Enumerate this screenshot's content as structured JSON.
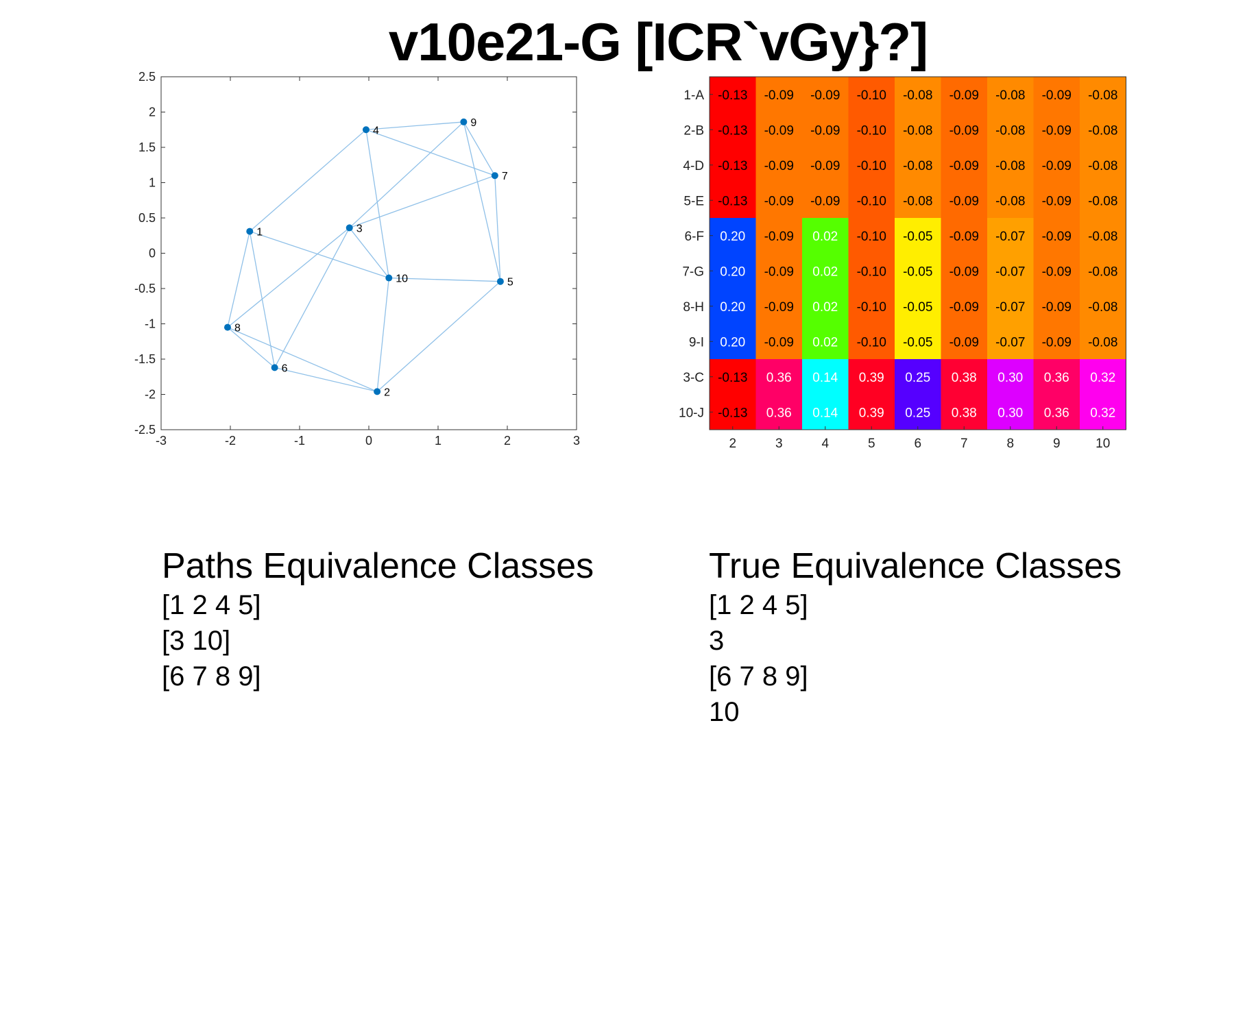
{
  "title": "v10e21-G [ICR`vGy}?]",
  "graph": {
    "xlim": [
      -3,
      3
    ],
    "ylim": [
      -2.5,
      2.5
    ],
    "xticks": [
      "-3",
      "-2",
      "-1",
      "0",
      "1",
      "2",
      "3"
    ],
    "yticks": [
      "2.5",
      "2",
      "1.5",
      "1",
      "0.5",
      "0",
      "-0.5",
      "-1",
      "-1.5",
      "-2",
      "-2.5"
    ],
    "node_color": "#0072BD",
    "edge_color": "#8FC0E8",
    "nodes": [
      {
        "id": "1",
        "x": -1.72,
        "y": 0.31
      },
      {
        "id": "2",
        "x": 0.12,
        "y": -1.96
      },
      {
        "id": "3",
        "x": -0.28,
        "y": 0.36
      },
      {
        "id": "4",
        "x": -0.04,
        "y": 1.75
      },
      {
        "id": "5",
        "x": 1.9,
        "y": -0.4
      },
      {
        "id": "6",
        "x": -1.36,
        "y": -1.62
      },
      {
        "id": "7",
        "x": 1.82,
        "y": 1.1
      },
      {
        "id": "8",
        "x": -2.04,
        "y": -1.05
      },
      {
        "id": "9",
        "x": 1.37,
        "y": 1.86
      },
      {
        "id": "10",
        "x": 0.29,
        "y": -0.35
      }
    ],
    "edges": [
      [
        "1",
        "4"
      ],
      [
        "1",
        "10"
      ],
      [
        "1",
        "8"
      ],
      [
        "1",
        "6"
      ],
      [
        "4",
        "9"
      ],
      [
        "4",
        "7"
      ],
      [
        "4",
        "10"
      ],
      [
        "9",
        "7"
      ],
      [
        "9",
        "5"
      ],
      [
        "9",
        "3"
      ],
      [
        "7",
        "5"
      ],
      [
        "7",
        "3"
      ],
      [
        "3",
        "10"
      ],
      [
        "3",
        "8"
      ],
      [
        "3",
        "6"
      ],
      [
        "10",
        "5"
      ],
      [
        "10",
        "2"
      ],
      [
        "5",
        "2"
      ],
      [
        "8",
        "6"
      ],
      [
        "8",
        "2"
      ],
      [
        "6",
        "2"
      ]
    ]
  },
  "heatmap": {
    "row_labels": [
      "1-A",
      "2-B",
      "4-D",
      "5-E",
      "6-F",
      "7-G",
      "8-H",
      "9-I",
      "3-C",
      "10-J"
    ],
    "col_labels": [
      "2",
      "3",
      "4",
      "5",
      "6",
      "7",
      "8",
      "9",
      "10"
    ],
    "values": [
      [
        "-0.13",
        "-0.09",
        "-0.09",
        "-0.10",
        "-0.08",
        "-0.09",
        "-0.08",
        "-0.09",
        "-0.08"
      ],
      [
        "-0.13",
        "-0.09",
        "-0.09",
        "-0.10",
        "-0.08",
        "-0.09",
        "-0.08",
        "-0.09",
        "-0.08"
      ],
      [
        "-0.13",
        "-0.09",
        "-0.09",
        "-0.10",
        "-0.08",
        "-0.09",
        "-0.08",
        "-0.09",
        "-0.08"
      ],
      [
        "-0.13",
        "-0.09",
        "-0.09",
        "-0.10",
        "-0.08",
        "-0.09",
        "-0.08",
        "-0.09",
        "-0.08"
      ],
      [
        "0.20",
        "-0.09",
        "0.02",
        "-0.10",
        "-0.05",
        "-0.09",
        "-0.07",
        "-0.09",
        "-0.08"
      ],
      [
        "0.20",
        "-0.09",
        "0.02",
        "-0.10",
        "-0.05",
        "-0.09",
        "-0.07",
        "-0.09",
        "-0.08"
      ],
      [
        "0.20",
        "-0.09",
        "0.02",
        "-0.10",
        "-0.05",
        "-0.09",
        "-0.07",
        "-0.09",
        "-0.08"
      ],
      [
        "0.20",
        "-0.09",
        "0.02",
        "-0.10",
        "-0.05",
        "-0.09",
        "-0.07",
        "-0.09",
        "-0.08"
      ],
      [
        "-0.13",
        "0.36",
        "0.14",
        "0.39",
        "0.25",
        "0.38",
        "0.30",
        "0.36",
        "0.32"
      ],
      [
        "-0.13",
        "0.36",
        "0.14",
        "0.39",
        "0.25",
        "0.38",
        "0.30",
        "0.36",
        "0.32"
      ]
    ],
    "colors": [
      [
        "#FF0000",
        "#FF7700",
        "#FF7700",
        "#FF5A00",
        "#FF8A00",
        "#FF6A00",
        "#FF8A00",
        "#FF7700",
        "#FF8A00"
      ],
      [
        "#FF0000",
        "#FF7700",
        "#FF7700",
        "#FF5A00",
        "#FF8A00",
        "#FF6A00",
        "#FF8A00",
        "#FF7700",
        "#FF8A00"
      ],
      [
        "#FF0000",
        "#FF7700",
        "#FF7700",
        "#FF5A00",
        "#FF8A00",
        "#FF6A00",
        "#FF8A00",
        "#FF7700",
        "#FF8A00"
      ],
      [
        "#FF0000",
        "#FF7700",
        "#FF7700",
        "#FF5A00",
        "#FF8A00",
        "#FF6A00",
        "#FF8A00",
        "#FF7700",
        "#FF8A00"
      ],
      [
        "#0044FF",
        "#FF7700",
        "#55FF00",
        "#FF5A00",
        "#FFEE00",
        "#FF6A00",
        "#FFA000",
        "#FF7700",
        "#FF8A00"
      ],
      [
        "#0044FF",
        "#FF7700",
        "#55FF00",
        "#FF5A00",
        "#FFEE00",
        "#FF6A00",
        "#FFA000",
        "#FF7700",
        "#FF8A00"
      ],
      [
        "#0044FF",
        "#FF7700",
        "#55FF00",
        "#FF5A00",
        "#FFEE00",
        "#FF6A00",
        "#FFA000",
        "#FF7700",
        "#FF8A00"
      ],
      [
        "#0044FF",
        "#FF7700",
        "#55FF00",
        "#FF5A00",
        "#FFEE00",
        "#FF6A00",
        "#FFA000",
        "#FF7700",
        "#FF8A00"
      ],
      [
        "#FF0000",
        "#FF0066",
        "#00FFFF",
        "#FF0022",
        "#5500FF",
        "#FF0033",
        "#DD00FF",
        "#FF0066",
        "#FF00EE"
      ],
      [
        "#FF0000",
        "#FF0066",
        "#00FFFF",
        "#FF0022",
        "#5500FF",
        "#FF0033",
        "#DD00FF",
        "#FF0066",
        "#FF00EE"
      ]
    ],
    "text_colors": [
      [
        "#000",
        "#000",
        "#000",
        "#000",
        "#000",
        "#000",
        "#000",
        "#000",
        "#000"
      ],
      [
        "#000",
        "#000",
        "#000",
        "#000",
        "#000",
        "#000",
        "#000",
        "#000",
        "#000"
      ],
      [
        "#000",
        "#000",
        "#000",
        "#000",
        "#000",
        "#000",
        "#000",
        "#000",
        "#000"
      ],
      [
        "#000",
        "#000",
        "#000",
        "#000",
        "#000",
        "#000",
        "#000",
        "#000",
        "#000"
      ],
      [
        "#fff",
        "#000",
        "#fff",
        "#000",
        "#000",
        "#000",
        "#000",
        "#000",
        "#000"
      ],
      [
        "#fff",
        "#000",
        "#fff",
        "#000",
        "#000",
        "#000",
        "#000",
        "#000",
        "#000"
      ],
      [
        "#fff",
        "#000",
        "#fff",
        "#000",
        "#000",
        "#000",
        "#000",
        "#000",
        "#000"
      ],
      [
        "#fff",
        "#000",
        "#fff",
        "#000",
        "#000",
        "#000",
        "#000",
        "#000",
        "#000"
      ],
      [
        "#000",
        "#fff",
        "#fff",
        "#fff",
        "#fff",
        "#fff",
        "#fff",
        "#fff",
        "#fff"
      ],
      [
        "#000",
        "#fff",
        "#fff",
        "#fff",
        "#fff",
        "#fff",
        "#fff",
        "#fff",
        "#fff"
      ]
    ]
  },
  "paths_classes": {
    "title": "Paths Equivalence Classes",
    "items": [
      "[1 2 4 5]",
      "[3 10]",
      "[6 7 8 9]"
    ]
  },
  "true_classes": {
    "title": "True Equivalence Classes",
    "items": [
      "[1 2 4 5]",
      "3",
      "[6 7 8 9]",
      "10"
    ]
  }
}
